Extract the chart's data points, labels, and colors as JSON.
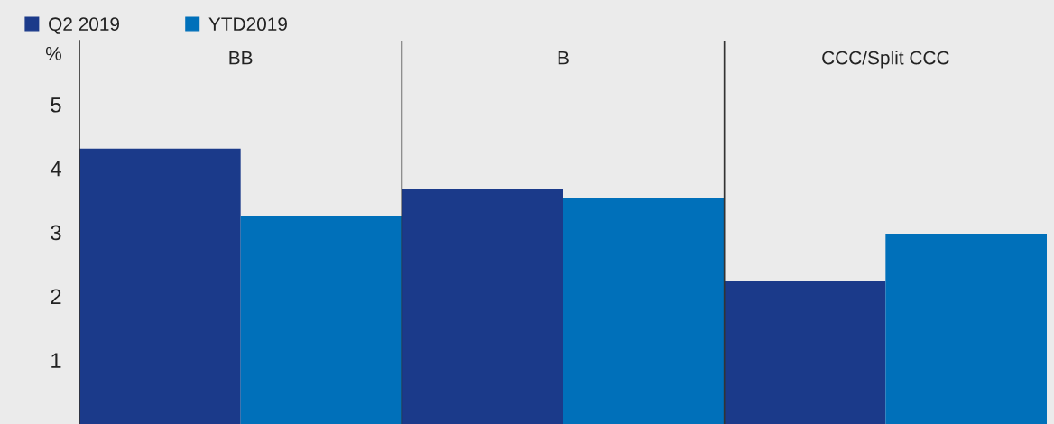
{
  "chart_data": {
    "type": "bar",
    "ylabel": "%",
    "categories": [
      "BB",
      "B",
      "CCC/Split CCC"
    ],
    "series": [
      {
        "name": "Q2 2019",
        "color": "#1b3a8a",
        "values": [
          4.31,
          3.68,
          2.23
        ]
      },
      {
        "name": "YTD2019",
        "color": "#0070ba",
        "values": [
          3.26,
          3.53,
          2.98
        ]
      }
    ],
    "ylim": [
      0,
      6
    ],
    "yticks": [
      1,
      2,
      3,
      4,
      5
    ],
    "grid": false,
    "legend": "top left"
  }
}
